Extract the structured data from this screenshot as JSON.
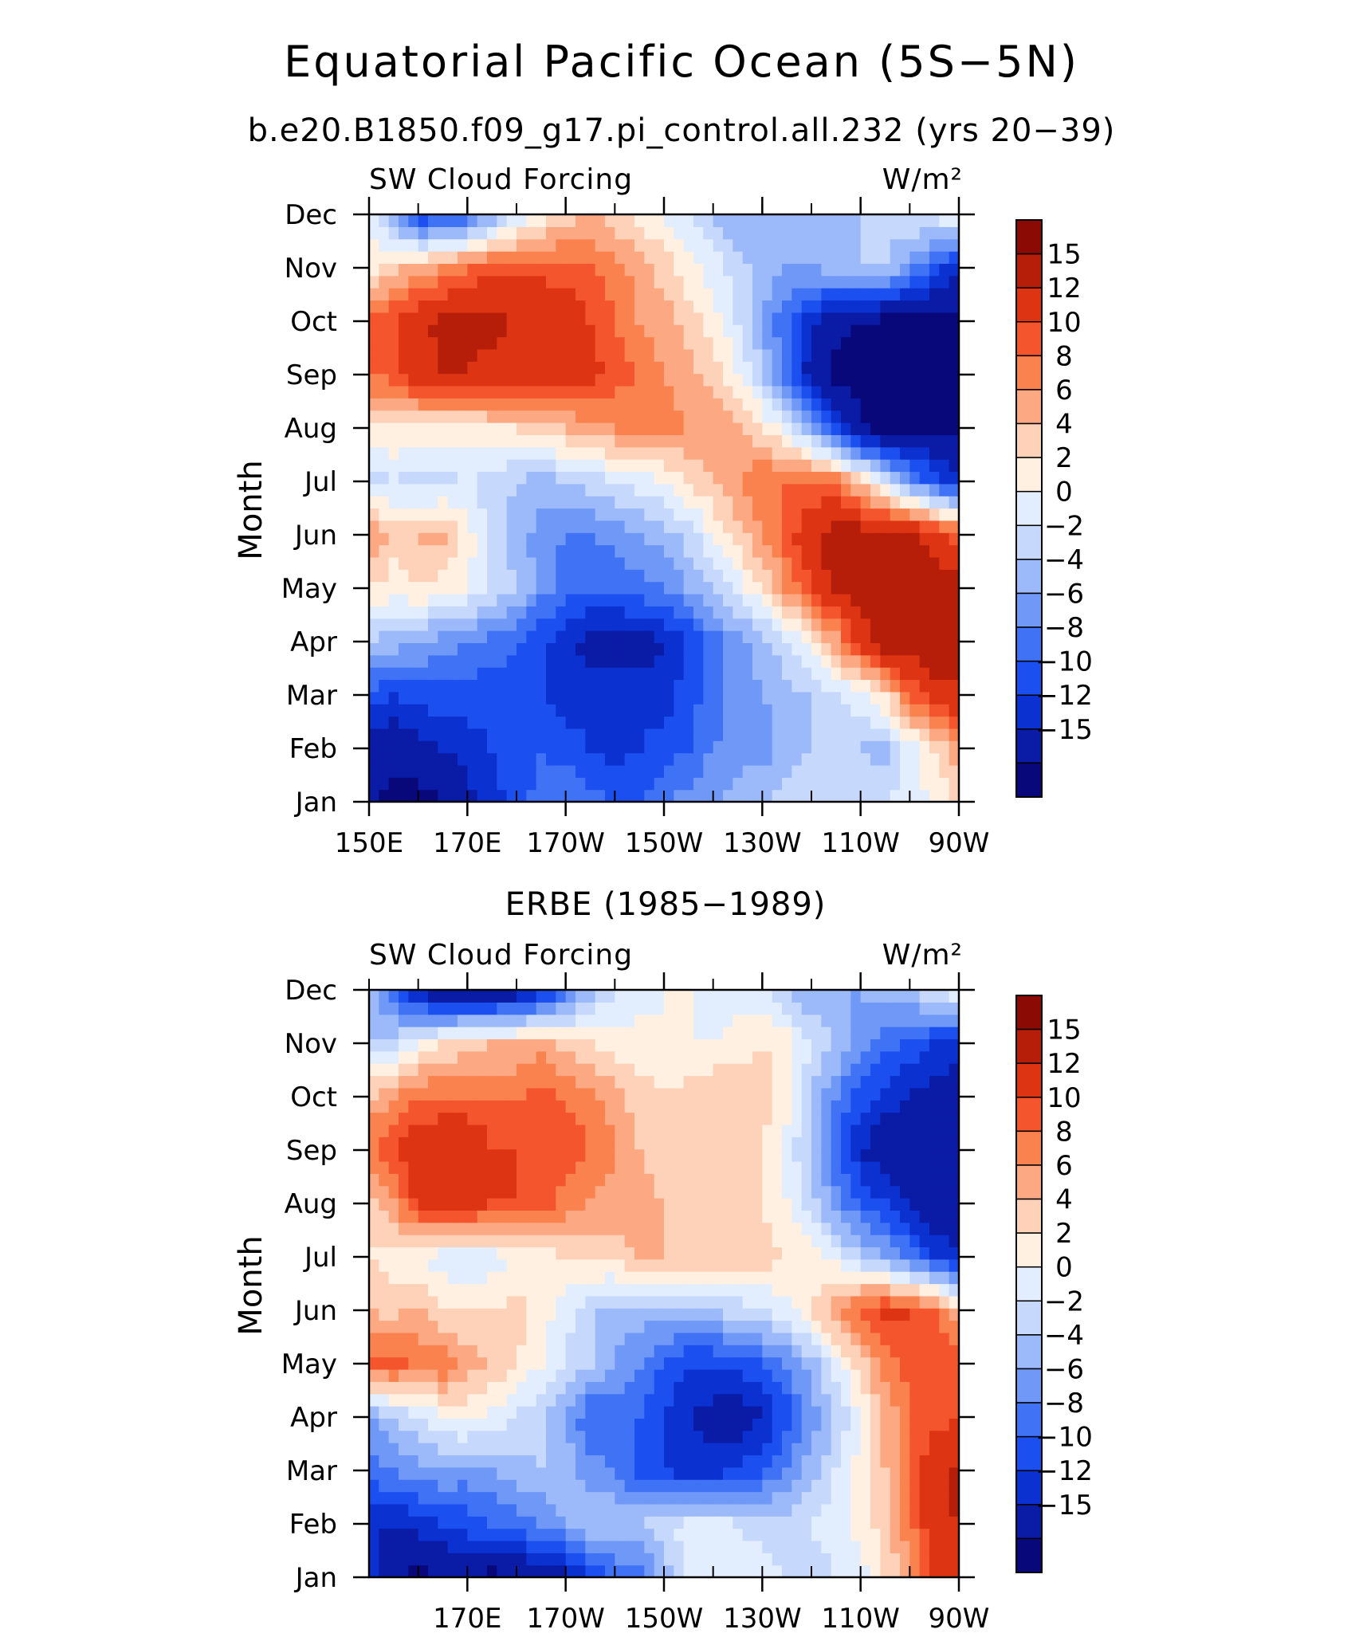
{
  "figure": {
    "title": "Equatorial Pacific Ocean (5S−5N)",
    "colors": [
      "#08087a",
      "#0a1ba6",
      "#0b31d0",
      "#1c4ff0",
      "#3f72f5",
      "#6f98f7",
      "#9cbaf9",
      "#c6d8fc",
      "#e2edfe",
      "#fff0e2",
      "#fdd2b8",
      "#fca983",
      "#f9824f",
      "#f4552c",
      "#dd3514",
      "#b71e0a",
      "#8c0a04"
    ]
  },
  "chart_data": [
    {
      "type": "heatmap",
      "subtitle": "b.e20.B1850.f09_g17.pi_control.all.232 (yrs 20−39)",
      "left_label": "SW Cloud Forcing",
      "right_label": "W/m²",
      "ylabel": "Month",
      "xlabel": "",
      "x_ticks": [
        "150E",
        "170E",
        "170W",
        "150W",
        "130W",
        "110W",
        "90W"
      ],
      "x_tick_lon": [
        150,
        170,
        190,
        210,
        230,
        250,
        270
      ],
      "xlim": [
        150,
        270
      ],
      "y_ticks": [
        "Jan",
        "Feb",
        "Mar",
        "Apr",
        "May",
        "Jun",
        "Jul",
        "Aug",
        "Sep",
        "Oct",
        "Nov",
        "Dec"
      ],
      "colorbar_levels": [
        "15",
        "12",
        "10",
        "8",
        "6",
        "4",
        "2",
        "0",
        "−2",
        "−4",
        "−6",
        "−8",
        "−10",
        "−12",
        "−15"
      ],
      "lon": [
        150,
        155,
        160,
        165,
        170,
        175,
        180,
        185,
        190,
        195,
        200,
        205,
        210,
        215,
        220,
        225,
        230,
        235,
        240,
        245,
        250,
        255,
        260,
        265,
        270
      ],
      "z": [
        [
          -14,
          -16,
          -16,
          -15,
          -13,
          -11,
          -9,
          -7,
          -6,
          -7,
          -8,
          -8,
          -6,
          -5,
          -4,
          -3,
          -2,
          -1,
          -1,
          -1,
          -1,
          0,
          1,
          2,
          4
        ],
        [
          -14,
          -14,
          -13,
          -12,
          -11,
          -10,
          -9,
          -8,
          -9,
          -10,
          -11,
          -10,
          -9,
          -8,
          -6,
          -5,
          -5,
          -3,
          -2,
          -1,
          -2,
          -3,
          1,
          4,
          8
        ],
        [
          -9,
          -10,
          -9,
          -9,
          -9,
          -9,
          -9,
          -10,
          -11,
          -11,
          -11,
          -11,
          -11,
          -9,
          -7,
          -5,
          -4,
          -3,
          -2,
          0,
          1,
          4,
          10,
          14,
          14
        ],
        [
          -2,
          -3,
          -4,
          -5,
          -6,
          -7,
          -8,
          -10,
          -11,
          -13,
          -13,
          -13,
          -12,
          -10,
          -7,
          -5,
          -3,
          0,
          3,
          7,
          13,
          17,
          17,
          17,
          17
        ],
        [
          4,
          3,
          4,
          3,
          2,
          0,
          -2,
          -5,
          -7,
          -8,
          -8,
          -7,
          -6,
          -4,
          -2,
          1,
          4,
          8,
          12,
          16,
          17,
          17,
          17,
          17,
          16
        ],
        [
          9,
          5,
          6,
          7,
          3,
          -1,
          -3,
          -5,
          -6,
          -6,
          -5,
          -4,
          -3,
          -1,
          2,
          5,
          8,
          11,
          14,
          17,
          17,
          17,
          16,
          14,
          11
        ],
        [
          -1,
          0,
          -1,
          -1,
          0,
          -1,
          -2,
          -3,
          -2,
          -1,
          0,
          1,
          2,
          4,
          6,
          8,
          10,
          10,
          10,
          10,
          5,
          0,
          -5,
          -9,
          -12
        ],
        [
          4,
          4,
          3,
          3,
          3,
          4,
          4,
          5,
          6,
          7,
          8,
          9,
          9,
          8,
          8,
          7,
          4,
          1,
          -4,
          -10,
          -15,
          -16,
          -16,
          -16,
          -16
        ],
        [
          10,
          11,
          14,
          15,
          15,
          14,
          13,
          13,
          13,
          13,
          11,
          10,
          8,
          7,
          5,
          2,
          -2,
          -7,
          -14,
          -16,
          -16,
          -16,
          -16,
          -16,
          -16
        ],
        [
          10,
          12,
          14,
          16,
          16,
          16,
          15,
          15,
          14,
          12,
          10,
          8,
          7,
          5,
          3,
          0,
          -4,
          -8,
          -11,
          -14,
          -15,
          -16,
          -16,
          -16,
          -16
        ],
        [
          3,
          5,
          7,
          8,
          10,
          11,
          11,
          11,
          11,
          10,
          9,
          7,
          5,
          3,
          1,
          -1,
          -3,
          -4,
          -4,
          -3,
          -2,
          -2,
          -5,
          -9,
          -12
        ],
        [
          2,
          -4,
          -10,
          -10,
          -8,
          -4,
          0,
          3,
          5,
          6,
          5,
          3,
          2,
          0,
          -2,
          -4,
          -4,
          -4,
          -3,
          -3,
          -2,
          -1,
          0,
          1,
          3
        ]
      ]
    },
    {
      "type": "heatmap",
      "subtitle": "ERBE (1985−1989)",
      "left_label": "SW Cloud Forcing",
      "right_label": "W/m²",
      "ylabel": "Month",
      "xlabel": "",
      "x_ticks": [
        "170E",
        "170W",
        "150W",
        "130W",
        "110W",
        "90W"
      ],
      "x_tick_lon": [
        170,
        190,
        210,
        230,
        250,
        270
      ],
      "xlim": [
        150,
        270
      ],
      "y_ticks": [
        "Jan",
        "Feb",
        "Mar",
        "Apr",
        "May",
        "Jun",
        "Jul",
        "Aug",
        "Sep",
        "Oct",
        "Nov",
        "Dec"
      ],
      "colorbar_levels": [
        "15",
        "12",
        "10",
        "8",
        "6",
        "4",
        "2",
        "0",
        "−2",
        "−4",
        "−6",
        "−8",
        "−10",
        "−12",
        "−15"
      ],
      "lon": [
        150,
        155,
        160,
        165,
        170,
        175,
        180,
        185,
        190,
        195,
        200,
        205,
        210,
        215,
        220,
        225,
        230,
        235,
        240,
        245,
        250,
        255,
        260,
        265,
        270
      ],
      "z": [
        [
          -10,
          -14,
          -16,
          -15,
          -14,
          -16,
          -15,
          -14,
          -13,
          -10,
          -8,
          -7,
          -3,
          1,
          2,
          2,
          1,
          0,
          -1,
          0,
          1,
          4,
          8,
          12,
          14
        ],
        [
          -12,
          -12,
          -11,
          -10,
          -9,
          -8,
          -7,
          -6,
          -4,
          -2,
          -2,
          -2,
          -1,
          1,
          1,
          0,
          -1,
          -1,
          0,
          1,
          3,
          5,
          9,
          14,
          15
        ],
        [
          -7,
          -6,
          -5,
          -4,
          -5,
          -4,
          -3,
          -2,
          -3,
          -5,
          -6,
          -9,
          -10,
          -11,
          -11,
          -10,
          -8,
          -6,
          -3,
          0,
          3,
          6,
          11,
          14,
          16
        ],
        [
          -4,
          -2,
          0,
          2,
          3,
          1,
          0,
          -2,
          -4,
          -8,
          -7,
          -8,
          -10,
          -12,
          -13,
          -14,
          -12,
          -9,
          -5,
          -2,
          2,
          6,
          10,
          11,
          12
        ],
        [
          10,
          11,
          9,
          10,
          7,
          6,
          4,
          2,
          0,
          -2,
          -4,
          -6,
          -8,
          -10,
          -10,
          -9,
          -8,
          -6,
          -3,
          1,
          5,
          9,
          11,
          12,
          12
        ],
        [
          6,
          5,
          7,
          4,
          4,
          4,
          5,
          3,
          1,
          -2,
          -3,
          -3,
          -3,
          -3,
          -2,
          -1,
          0,
          1,
          4,
          8,
          11,
          13,
          12,
          10,
          6
        ],
        [
          4,
          3,
          2,
          1,
          0,
          1,
          2,
          3,
          4,
          5,
          5,
          6,
          6,
          6,
          6,
          5,
          5,
          4,
          3,
          1,
          -2,
          -4,
          -7,
          -10,
          -12
        ],
        [
          5,
          8,
          13,
          14,
          14,
          12,
          12,
          11,
          9,
          8,
          7,
          7,
          6,
          5,
          5,
          5,
          4,
          2,
          -1,
          -5,
          -8,
          -10,
          -12,
          -14,
          -15
        ],
        [
          10,
          12,
          14,
          15,
          15,
          12,
          12,
          12,
          11,
          10,
          8,
          6,
          5,
          6,
          6,
          5,
          4,
          1,
          -2,
          -8,
          -12,
          -14,
          -15,
          -15,
          -15
        ],
        [
          6,
          8,
          10,
          10,
          10,
          10,
          10,
          11,
          10,
          9,
          7,
          5,
          4,
          5,
          6,
          6,
          5,
          3,
          -2,
          -6,
          -9,
          -11,
          -12,
          -13,
          -14
        ],
        [
          -2,
          -1,
          2,
          4,
          5,
          6,
          6,
          7,
          5,
          4,
          3,
          3,
          2,
          2,
          2,
          3,
          4,
          3,
          0,
          -2,
          -5,
          -7,
          -9,
          -10,
          -11
        ],
        [
          -2,
          -8,
          -13,
          -15,
          -16,
          -16,
          -14,
          -12,
          -8,
          -3,
          0,
          1,
          2,
          2,
          1,
          1,
          0,
          -2,
          -4,
          -4,
          -4,
          -3,
          -2,
          0,
          3
        ]
      ]
    }
  ]
}
